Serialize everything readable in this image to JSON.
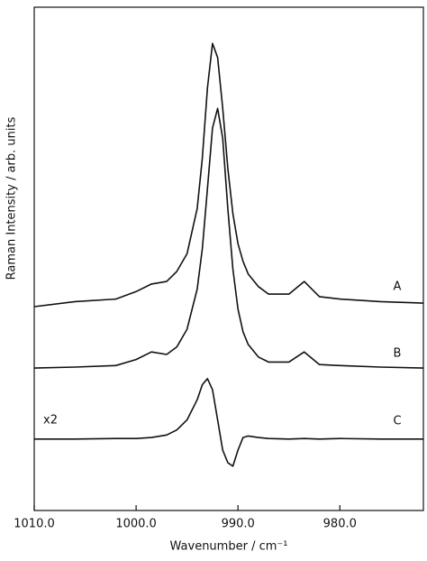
{
  "chart_data": {
    "type": "line",
    "x_label": "Wavenumber / cm⁻¹",
    "y_label": "Raman Intensity / arb. units",
    "xlim": [
      1010,
      971.8
    ],
    "xticks": [
      {
        "value": 1010,
        "label": "1010.0"
      },
      {
        "value": 1000,
        "label": "1000.0"
      },
      {
        "value": 990,
        "label": "990.0"
      },
      {
        "value": 980,
        "label": "980.0"
      }
    ],
    "ylim": [
      0,
      100
    ],
    "annotations": [
      "x2"
    ],
    "x": [
      1010,
      1006,
      1002,
      1000,
      998.5,
      997,
      996,
      995,
      994,
      993.5,
      993,
      992.5,
      992,
      991.5,
      991,
      990.5,
      990,
      989.5,
      989,
      988,
      987,
      985,
      983.5,
      982,
      980,
      976,
      971.8
    ],
    "series": [
      {
        "name": "A",
        "color": "#111111",
        "values": [
          40.5,
          41.5,
          42,
          43.5,
          45,
          45.5,
          47.5,
          51,
          60,
          70,
          84,
          92.8,
          90,
          80,
          68,
          59,
          53,
          49.5,
          47,
          44.5,
          43,
          43,
          45.5,
          42.5,
          42,
          41.5,
          41.2
        ]
      },
      {
        "name": "B",
        "color": "#111111",
        "values": [
          28.3,
          28.5,
          28.8,
          30,
          31.5,
          31,
          32.5,
          36,
          44,
          52,
          64,
          76,
          79.9,
          74,
          60,
          48,
          40,
          35.5,
          33,
          30.5,
          29.5,
          29.5,
          31.5,
          29,
          28.8,
          28.5,
          28.3
        ]
      },
      {
        "name": "C",
        "color": "#111111",
        "values": [
          14.2,
          14.2,
          14.3,
          14.3,
          14.5,
          15,
          16,
          18,
          22,
          25,
          26.2,
          24,
          18,
          12,
          9.5,
          8.8,
          12,
          14.5,
          14.8,
          14.5,
          14.3,
          14.2,
          14.3,
          14.2,
          14.3,
          14.2,
          14.2
        ]
      }
    ]
  }
}
